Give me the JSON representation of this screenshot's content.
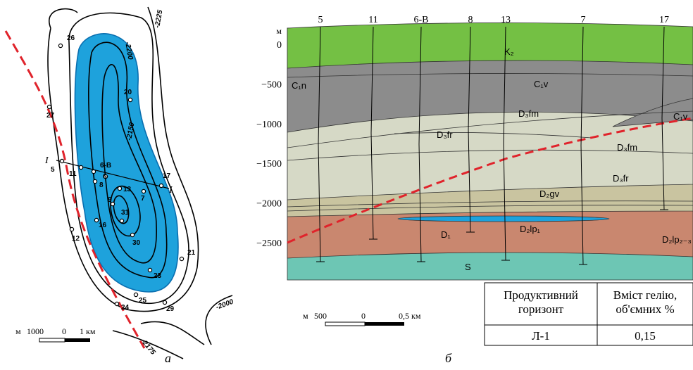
{
  "map": {
    "wells": [
      "26",
      "27",
      "20",
      "5",
      "11",
      "6-В",
      "6",
      "8",
      "13",
      "7",
      "17",
      "9",
      "31",
      "16",
      "12",
      "30",
      "21",
      "23",
      "25",
      "24",
      "29"
    ],
    "contours": [
      "-2200",
      "-2225",
      "-2150",
      "-2000",
      "-2175"
    ],
    "section_ends": [
      "I",
      "I"
    ],
    "scale": {
      "unit": "м",
      "left": "1000",
      "zero": "0",
      "right": "1 км"
    },
    "panel": "а"
  },
  "section": {
    "wells": [
      "5",
      "11",
      "6-В",
      "8",
      "13",
      "7",
      "17"
    ],
    "axis_unit": "м",
    "axis_labels": [
      "0",
      "−500",
      "−1000",
      "−1500",
      "−2000",
      "−2500"
    ],
    "layers": [
      "K₂",
      "C₁n",
      "C₁v",
      "D₃fm",
      "D₃fr",
      "D₃fm",
      "D₃fr",
      "C₁v",
      "D₂gv",
      "D₂lp₁",
      "D₁",
      "D₂lp₂₋₃",
      "S"
    ],
    "scale": {
      "unit": "м",
      "left": "500",
      "zero": "0",
      "right": "0,5 км"
    },
    "panel": "б"
  },
  "table": {
    "header": [
      "Продуктивний горизонт",
      "Вміст гелію, об'ємних %"
    ],
    "rows": [
      [
        "Л-1",
        "0,15"
      ]
    ]
  }
}
